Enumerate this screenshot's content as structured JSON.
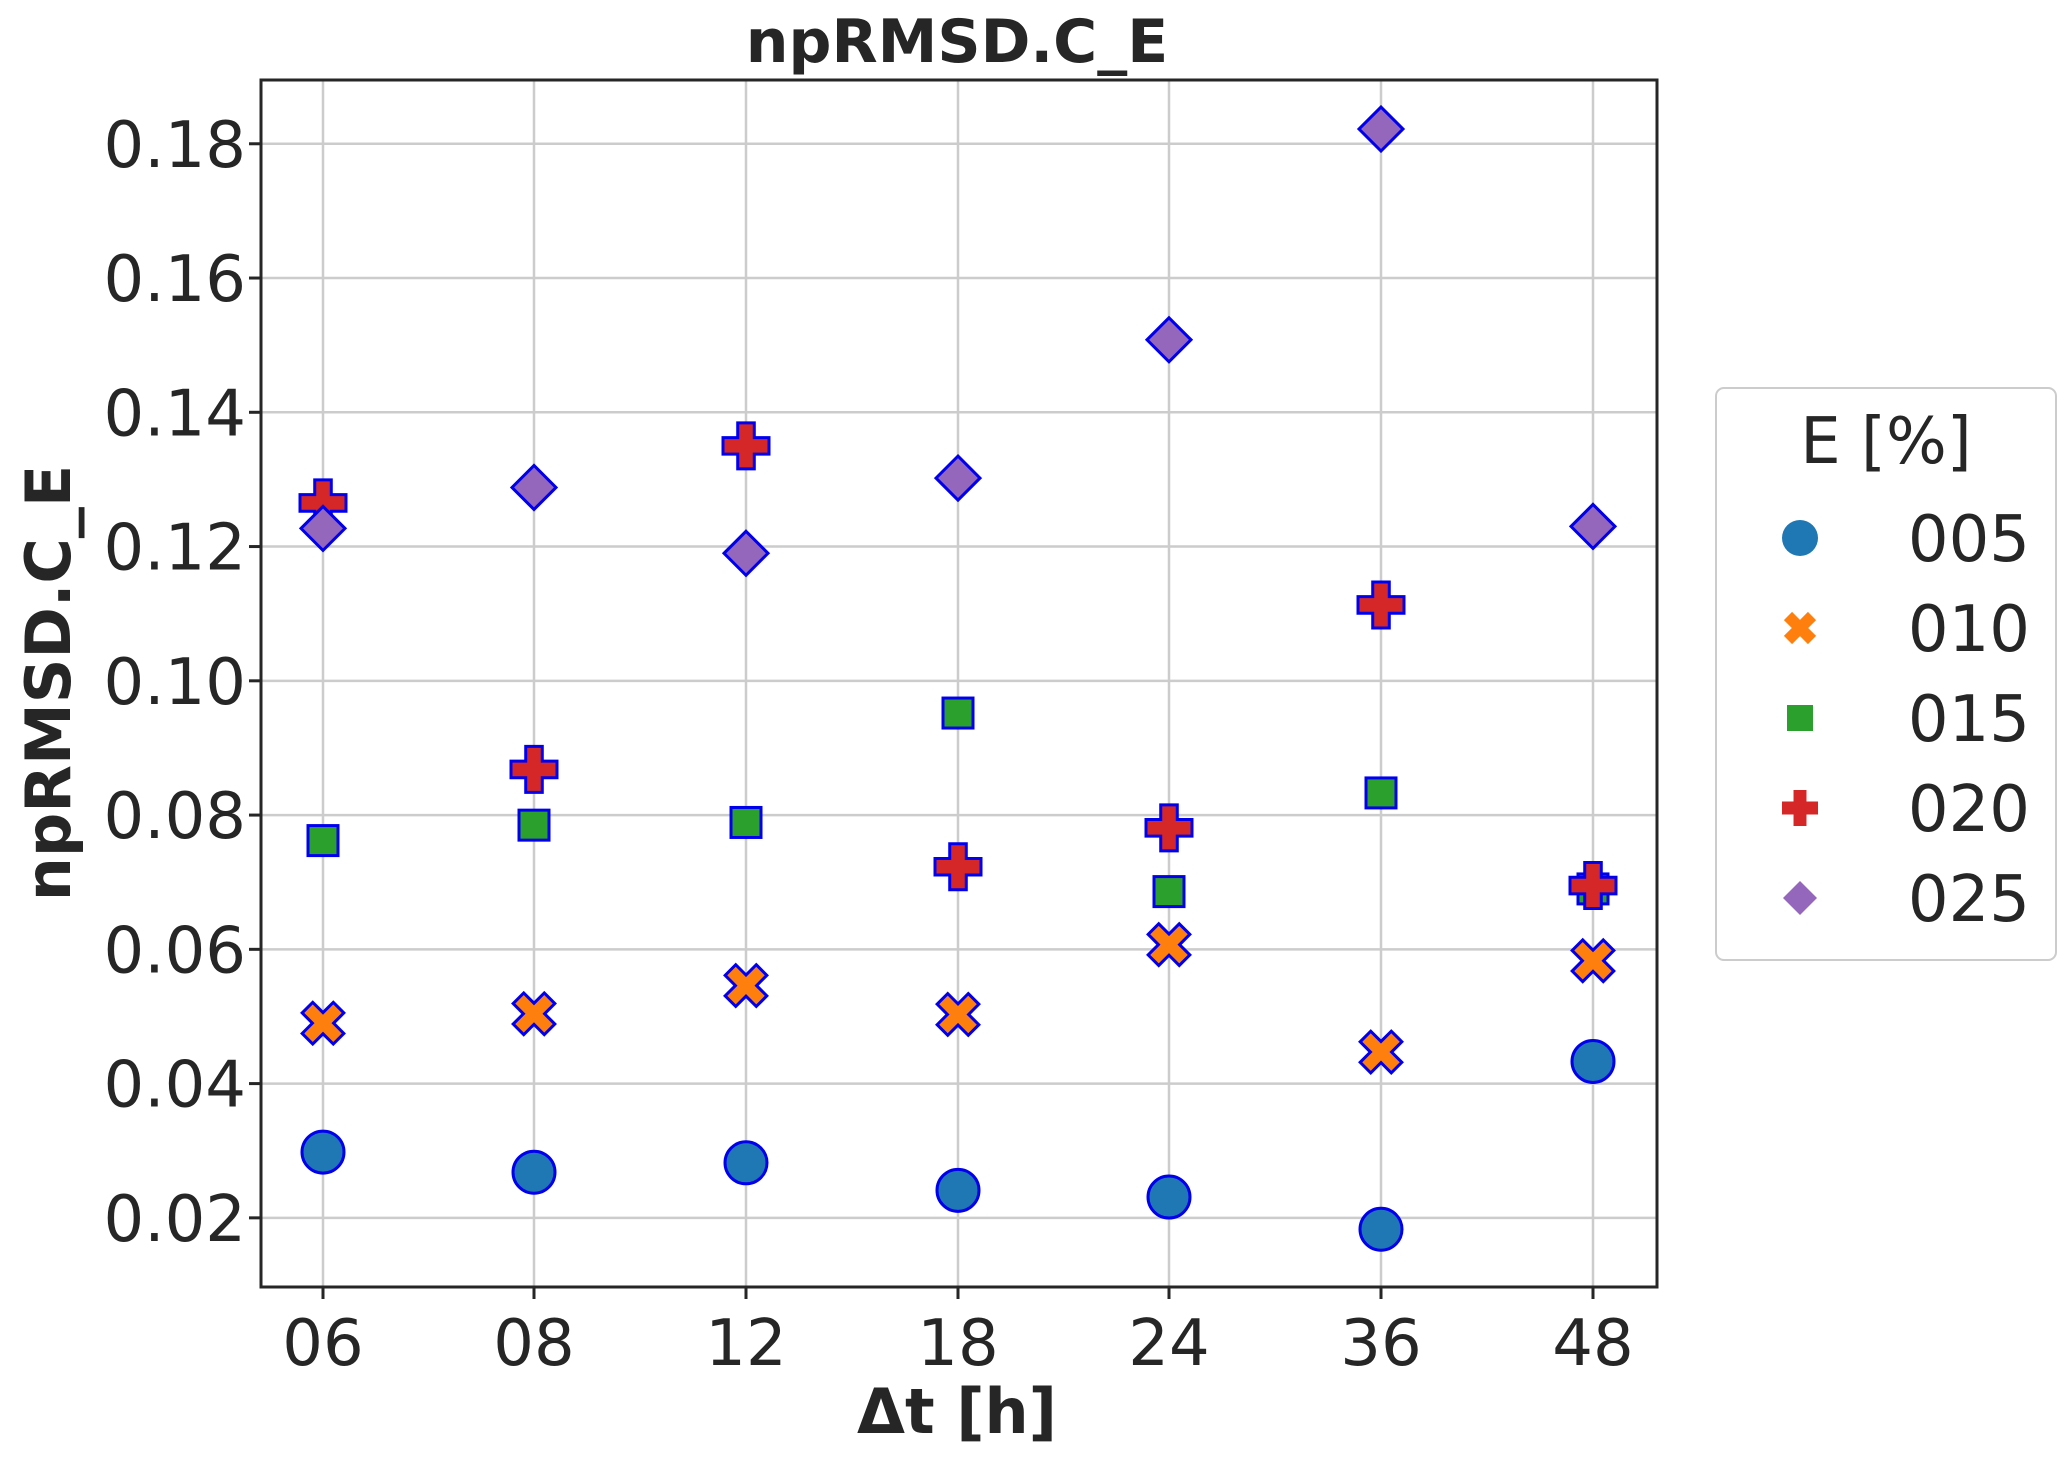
{
  "chart_data": {
    "type": "scatter",
    "title": "npRMSD.C_E",
    "xlabel": "Δt [h]",
    "ylabel": "npRMSD.C_E",
    "categories": [
      "06",
      "08",
      "12",
      "18",
      "24",
      "36",
      "48"
    ],
    "yticks": [
      "0.02",
      "0.04",
      "0.06",
      "0.08",
      "0.10",
      "0.12",
      "0.14",
      "0.16",
      "0.18"
    ],
    "ylim": [
      0.0097,
      0.1895
    ],
    "grid": true,
    "legend": {
      "title": "E [%]",
      "placement": "right-outside"
    },
    "marker_edge_color": "#0000ee",
    "series": [
      {
        "name": "005",
        "marker": "circle",
        "color": "#1f77b4",
        "values": [
          0.0298,
          0.0268,
          0.0282,
          0.0241,
          0.0231,
          0.0183,
          0.0433
        ]
      },
      {
        "name": "010",
        "marker": "x",
        "color": "#ff7f0e",
        "values": [
          0.049,
          0.0504,
          0.0546,
          0.0503,
          0.0607,
          0.0447,
          0.0583
        ]
      },
      {
        "name": "015",
        "marker": "square",
        "color": "#2ca02c",
        "values": [
          0.0762,
          0.0785,
          0.0789,
          0.0952,
          0.0686,
          0.0833,
          0.069
        ]
      },
      {
        "name": "020",
        "marker": "plus",
        "color": "#d62728",
        "values": [
          0.1265,
          0.0868,
          0.135,
          0.0723,
          0.0781,
          0.1113,
          0.0695
        ]
      },
      {
        "name": "025",
        "marker": "diamond",
        "color": "#9467bd",
        "values": [
          0.1227,
          0.1288,
          0.119,
          0.1302,
          0.1508,
          0.1822,
          0.123
        ]
      }
    ]
  }
}
